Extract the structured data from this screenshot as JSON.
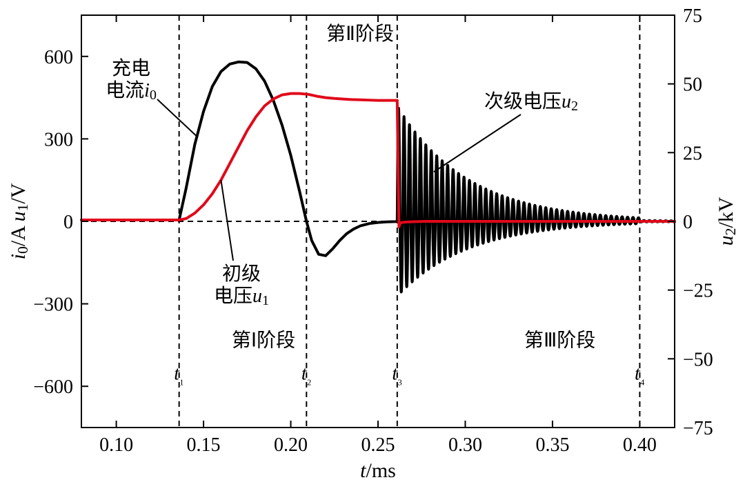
{
  "chart": {
    "type": "line-dual-axis",
    "background_color": "#ffffff",
    "plot_border_color": "#000000",
    "plot_border_width": 2,
    "font_family": "Times New Roman, SimSun, serif",
    "x": {
      "label": "t/ms",
      "label_fontsize": 30,
      "min": 0.08,
      "max": 0.42,
      "ticks": [
        0.1,
        0.15,
        0.2,
        0.25,
        0.3,
        0.35,
        0.4
      ],
      "tick_labels": [
        "0.10",
        "0.15",
        "0.20",
        "0.25",
        "0.30",
        "0.35",
        "0.40"
      ],
      "tick_fontsize": 28
    },
    "y_left": {
      "label": "i₀/A  u₁/V",
      "label_html": "i0/A  u1/V",
      "min": -750,
      "max": 750,
      "ticks": [
        -600,
        -300,
        0,
        300,
        600
      ],
      "tick_labels": [
        "−600",
        "−300",
        "0",
        "300",
        "600"
      ],
      "tick_fontsize": 28,
      "label_fontsize": 30
    },
    "y_right": {
      "label": "u₂/kV",
      "label_html": "u2/kV",
      "min": -75,
      "max": 75,
      "ticks": [
        -75,
        -50,
        -25,
        0,
        25,
        50,
        75
      ],
      "tick_labels": [
        "−75",
        "−50",
        "−25",
        "0",
        "25",
        "50",
        "75"
      ],
      "tick_fontsize": 28,
      "label_fontsize": 30
    },
    "event_lines": {
      "t1": {
        "x": 0.136,
        "label": "t₁"
      },
      "t2": {
        "x": 0.209,
        "label": "t₂"
      },
      "t3": {
        "x": 0.261,
        "label": "t₃"
      },
      "t4": {
        "x": 0.4,
        "label": "t₄"
      }
    },
    "zero_line_y": 0,
    "dash_pattern": "8 6",
    "series": {
      "i0": {
        "name": "充电电流 i0",
        "color": "#000000",
        "width": 4,
        "axis": "left",
        "points": [
          [
            0.08,
            5
          ],
          [
            0.09,
            5
          ],
          [
            0.1,
            5
          ],
          [
            0.11,
            5
          ],
          [
            0.12,
            5
          ],
          [
            0.13,
            5
          ],
          [
            0.136,
            5
          ],
          [
            0.14,
            120
          ],
          [
            0.145,
            280
          ],
          [
            0.15,
            400
          ],
          [
            0.155,
            490
          ],
          [
            0.16,
            545
          ],
          [
            0.165,
            572
          ],
          [
            0.17,
            580
          ],
          [
            0.175,
            578
          ],
          [
            0.18,
            555
          ],
          [
            0.185,
            510
          ],
          [
            0.19,
            440
          ],
          [
            0.195,
            350
          ],
          [
            0.2,
            240
          ],
          [
            0.205,
            110
          ],
          [
            0.209,
            0
          ],
          [
            0.212,
            -70
          ],
          [
            0.216,
            -120
          ],
          [
            0.22,
            -125
          ],
          [
            0.224,
            -100
          ],
          [
            0.228,
            -70
          ],
          [
            0.232,
            -45
          ],
          [
            0.236,
            -28
          ],
          [
            0.24,
            -16
          ],
          [
            0.245,
            -8
          ],
          [
            0.25,
            -4
          ],
          [
            0.255,
            -2
          ],
          [
            0.26,
            -1
          ],
          [
            0.262,
            0
          ]
        ]
      },
      "u1": {
        "name": "初级电压 u1",
        "color": "#e1091a",
        "width": 4,
        "axis": "right",
        "points": [
          [
            0.08,
            0.5
          ],
          [
            0.1,
            0.5
          ],
          [
            0.12,
            0.5
          ],
          [
            0.13,
            0.5
          ],
          [
            0.136,
            0.5
          ],
          [
            0.14,
            1
          ],
          [
            0.145,
            3
          ],
          [
            0.15,
            6
          ],
          [
            0.155,
            10
          ],
          [
            0.16,
            15
          ],
          [
            0.165,
            21
          ],
          [
            0.17,
            27
          ],
          [
            0.175,
            33
          ],
          [
            0.18,
            38
          ],
          [
            0.185,
            42
          ],
          [
            0.19,
            44.5
          ],
          [
            0.195,
            46
          ],
          [
            0.2,
            46.5
          ],
          [
            0.205,
            46.5
          ],
          [
            0.21,
            46.2
          ],
          [
            0.215,
            45.5
          ],
          [
            0.22,
            45
          ],
          [
            0.225,
            44.7
          ],
          [
            0.23,
            44.5
          ],
          [
            0.235,
            44.3
          ],
          [
            0.24,
            44.2
          ],
          [
            0.245,
            44.1
          ],
          [
            0.25,
            44
          ],
          [
            0.255,
            44
          ],
          [
            0.26,
            44
          ],
          [
            0.261,
            44
          ],
          [
            0.2615,
            20
          ],
          [
            0.262,
            -2
          ],
          [
            0.2625,
            -1
          ],
          [
            0.263,
            -0.5
          ],
          [
            0.265,
            -0.3
          ],
          [
            0.268,
            -0.2
          ],
          [
            0.272,
            -0.1
          ],
          [
            0.278,
            0
          ],
          [
            0.29,
            0
          ],
          [
            0.32,
            0
          ],
          [
            0.36,
            0
          ],
          [
            0.4,
            0
          ],
          [
            0.42,
            0
          ]
        ]
      },
      "u2_oscillation": {
        "name": "次级电压 u2",
        "color": "#000000",
        "width": 2.5,
        "axis": "right",
        "start_x": 0.261,
        "end_x": 0.42,
        "initial_amplitude_kv": 42,
        "decay_tau_ms": 0.04,
        "freq_per_ms": 320,
        "asym": 0.65
      }
    },
    "annotations": {
      "charge_current": {
        "text1": "充电",
        "text2": "电流i₀"
      },
      "primary_voltage": {
        "text1": "初级",
        "text2": "电压u₁"
      },
      "secondary_voltage": {
        "text": "次级电压u₂"
      },
      "stage1": {
        "text": "第Ⅰ阶段"
      },
      "stage2": {
        "text": "第Ⅱ阶段"
      },
      "stage3": {
        "text": "第Ⅲ阶段"
      }
    }
  }
}
